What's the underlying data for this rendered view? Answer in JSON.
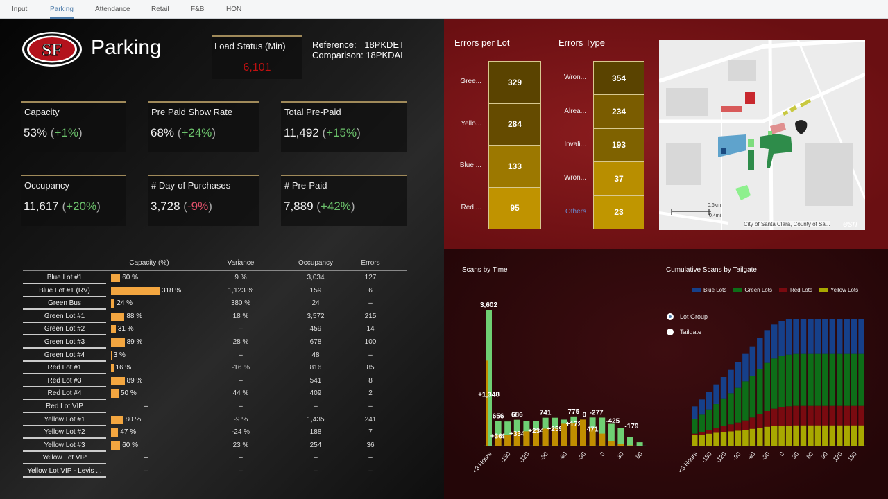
{
  "nav": {
    "tabs": [
      "Input",
      "Parking",
      "Attendance",
      "Retail",
      "F&B",
      "HON"
    ],
    "active": 1
  },
  "header": {
    "title": "Parking",
    "logo_text": "SF",
    "load_status_label": "Load Status (Min)",
    "load_status_value": "6,101",
    "reference_label": "Reference:",
    "reference_value": "18PKDET",
    "comparison_label": "Comparison:",
    "comparison_value": "18PKDAL"
  },
  "kpis": [
    {
      "title": "Capacity",
      "value": "53%",
      "delta": "+1%",
      "trend": "pos"
    },
    {
      "title": "Pre Paid Show Rate",
      "value": "68%",
      "delta": "+24%",
      "trend": "pos"
    },
    {
      "title": "Total Pre-Paid",
      "value": "11,492",
      "delta": "+15%",
      "trend": "pos"
    },
    {
      "title": "Occupancy",
      "value": "11,617",
      "delta": "+20%",
      "trend": "pos"
    },
    {
      "title": "# Day-of Purchases",
      "value": "3,728",
      "delta": "-9%",
      "trend": "neg"
    },
    {
      "title": "# Pre-Paid",
      "value": "7,889",
      "delta": "+42%",
      "trend": "pos"
    }
  ],
  "table": {
    "headers": [
      "Capacity (%)",
      "Variance",
      "Occupancy",
      "Errors"
    ],
    "rows": [
      {
        "lot": "Blue Lot #1",
        "capacity": 60,
        "capacity_text": "60 %",
        "variance": "9 %",
        "occupancy": "3,034",
        "errors": "127"
      },
      {
        "lot": "Blue Lot #1 (RV)",
        "capacity": 318,
        "capacity_text": "318 %",
        "variance": "1,123 %",
        "occupancy": "159",
        "errors": "6"
      },
      {
        "lot": "Green Bus",
        "capacity": 24,
        "capacity_text": "24 %",
        "variance": "380 %",
        "occupancy": "24",
        "errors": "–"
      },
      {
        "lot": "Green Lot #1",
        "capacity": 88,
        "capacity_text": "88 %",
        "variance": "18 %",
        "occupancy": "3,572",
        "errors": "215"
      },
      {
        "lot": "Green Lot #2",
        "capacity": 31,
        "capacity_text": "31 %",
        "variance": "–",
        "occupancy": "459",
        "errors": "14"
      },
      {
        "lot": "Green Lot #3",
        "capacity": 89,
        "capacity_text": "89 %",
        "variance": "28 %",
        "occupancy": "678",
        "errors": "100"
      },
      {
        "lot": "Green Lot #4",
        "capacity": 3,
        "capacity_text": "3 %",
        "variance": "–",
        "occupancy": "48",
        "errors": "–"
      },
      {
        "lot": "Red Lot #1",
        "capacity": 16,
        "capacity_text": "16 %",
        "variance": "-16 %",
        "occupancy": "816",
        "errors": "85"
      },
      {
        "lot": "Red Lot #3",
        "capacity": 89,
        "capacity_text": "89 %",
        "variance": "–",
        "occupancy": "541",
        "errors": "8"
      },
      {
        "lot": "Red Lot #4",
        "capacity": 50,
        "capacity_text": "50 %",
        "variance": "44 %",
        "occupancy": "409",
        "errors": "2"
      },
      {
        "lot": "Red Lot VIP",
        "capacity": null,
        "capacity_text": "–",
        "variance": "–",
        "occupancy": "–",
        "errors": "–"
      },
      {
        "lot": "Yellow Lot #1",
        "capacity": 80,
        "capacity_text": "80 %",
        "variance": "-9 %",
        "occupancy": "1,435",
        "errors": "241"
      },
      {
        "lot": "Yellow Lot #2",
        "capacity": 47,
        "capacity_text": "47 %",
        "variance": "-24 %",
        "occupancy": "188",
        "errors": "7"
      },
      {
        "lot": "Yellow Lot #3",
        "capacity": 60,
        "capacity_text": "60 %",
        "variance": "23 %",
        "occupancy": "254",
        "errors": "36"
      },
      {
        "lot": "Yellow Lot VIP",
        "capacity": null,
        "capacity_text": "–",
        "variance": "–",
        "occupancy": "–",
        "errors": "–"
      },
      {
        "lot": "Yellow Lot VIP - Levis ...",
        "capacity": null,
        "capacity_text": "–",
        "variance": "–",
        "occupancy": "–",
        "errors": "–"
      }
    ]
  },
  "errors_per_lot": {
    "title": "Errors per Lot",
    "items": [
      {
        "label": "Gree...",
        "value": "329",
        "color": "#5a4300"
      },
      {
        "label": "Yello...",
        "value": "284",
        "color": "#654b00"
      },
      {
        "label": "Blue ...",
        "value": "133",
        "color": "#9c7800"
      },
      {
        "label": "Red ...",
        "value": "95",
        "color": "#c09300"
      }
    ]
  },
  "errors_type": {
    "title": "Errors Type",
    "items": [
      {
        "label": "Wron...",
        "value": "354",
        "color": "#5a4300"
      },
      {
        "label": "Alrea...",
        "value": "234",
        "color": "#7a5c00"
      },
      {
        "label": "Invali...",
        "value": "193",
        "color": "#7f6200"
      },
      {
        "label": "Wron...",
        "value": "37",
        "color": "#b88e00"
      },
      {
        "label": "Others",
        "value": "23",
        "color": "#c09600"
      }
    ]
  },
  "map": {
    "scale_km": "0.6km",
    "scale_mi": "0.4mi",
    "attribution": "City of Santa Clara, County of Sa...",
    "brand": "esri"
  },
  "chart_data": [
    {
      "type": "bar",
      "title": "Scans by Time",
      "categories": [
        "<3 Hours",
        "",
        "-150",
        "",
        "-120",
        "",
        "-90",
        "",
        "-60",
        "",
        "-30",
        "",
        "0",
        "",
        "30",
        "",
        "60"
      ],
      "series": [
        {
          "name": "Comparison",
          "color": "#c08e00",
          "values": [
            2254,
            287,
            280,
            352,
            380,
            426,
            450,
            482,
            580,
            603,
            690,
            471,
            320,
            120,
            50,
            10,
            0
          ]
        },
        {
          "name": "Reference",
          "values": [
            3602,
            656,
            640,
            686,
            650,
            660,
            741,
            741,
            690,
            775,
            690,
            748,
            745,
            580,
            460,
            230,
            90
          ]
        }
      ],
      "total_labels": [
        "3,602",
        "656",
        "",
        "686",
        "",
        "",
        "741",
        "",
        "",
        "775",
        "0",
        "-277",
        "-425",
        "",
        "-179",
        "",
        ""
      ],
      "delta_labels": [
        "+1,348",
        "+369",
        "",
        "+334",
        "",
        "+234",
        "",
        "+259",
        "",
        "+172",
        "",
        "471",
        "",
        "",
        "",
        "",
        ""
      ],
      "colors": {
        "up": "#6fcf73",
        "down": "#e24a6a"
      }
    },
    {
      "type": "bar",
      "stacked": true,
      "title": "Cumulative Scans by Tailgate",
      "legend": "top",
      "categories": [
        "<3 Hours",
        "",
        "-150",
        "",
        "-120",
        "",
        "-90",
        "",
        "-60",
        "",
        "-30",
        "",
        "0",
        "",
        "30",
        "",
        "60",
        "",
        "90",
        "",
        "120",
        "",
        "150",
        ""
      ],
      "series": [
        {
          "name": "Yellow Lots",
          "color": "#a8a800",
          "values": [
            900,
            960,
            1040,
            1120,
            1160,
            1240,
            1300,
            1380,
            1460,
            1540,
            1640,
            1680,
            1720,
            1720,
            1760,
            1760,
            1760,
            1760,
            1760,
            1760,
            1760,
            1760,
            1760,
            1760
          ]
        },
        {
          "name": "Red Lots",
          "color": "#7a0a10",
          "values": [
            140,
            240,
            320,
            400,
            520,
            600,
            700,
            800,
            980,
            1180,
            1360,
            1520,
            1640,
            1680,
            1680,
            1680,
            1680,
            1680,
            1680,
            1680,
            1680,
            1680,
            1680,
            1680
          ]
        },
        {
          "name": "Green Lots",
          "color": "#0d6e18",
          "values": [
            1260,
            1480,
            1780,
            2080,
            2420,
            2700,
            3000,
            3380,
            3600,
            3880,
            4160,
            4340,
            4440,
            4480,
            4500,
            4500,
            4500,
            4500,
            4500,
            4500,
            4500,
            4500,
            4500,
            4500
          ]
        },
        {
          "name": "Blue Lots",
          "color": "#16408a",
          "values": [
            1100,
            1320,
            1500,
            1700,
            1840,
            2020,
            2240,
            2380,
            2560,
            2760,
            2840,
            2940,
            3000,
            3060,
            3040,
            3040,
            3040,
            3040,
            3040,
            3040,
            3040,
            3040,
            3040,
            3040
          ]
        }
      ],
      "legend_order": [
        "Blue Lots",
        "Green Lots",
        "Red Lots",
        "Yellow Lots"
      ],
      "radio": {
        "options": [
          "Lot Group",
          "Tailgate"
        ],
        "selected": 0
      }
    }
  ]
}
